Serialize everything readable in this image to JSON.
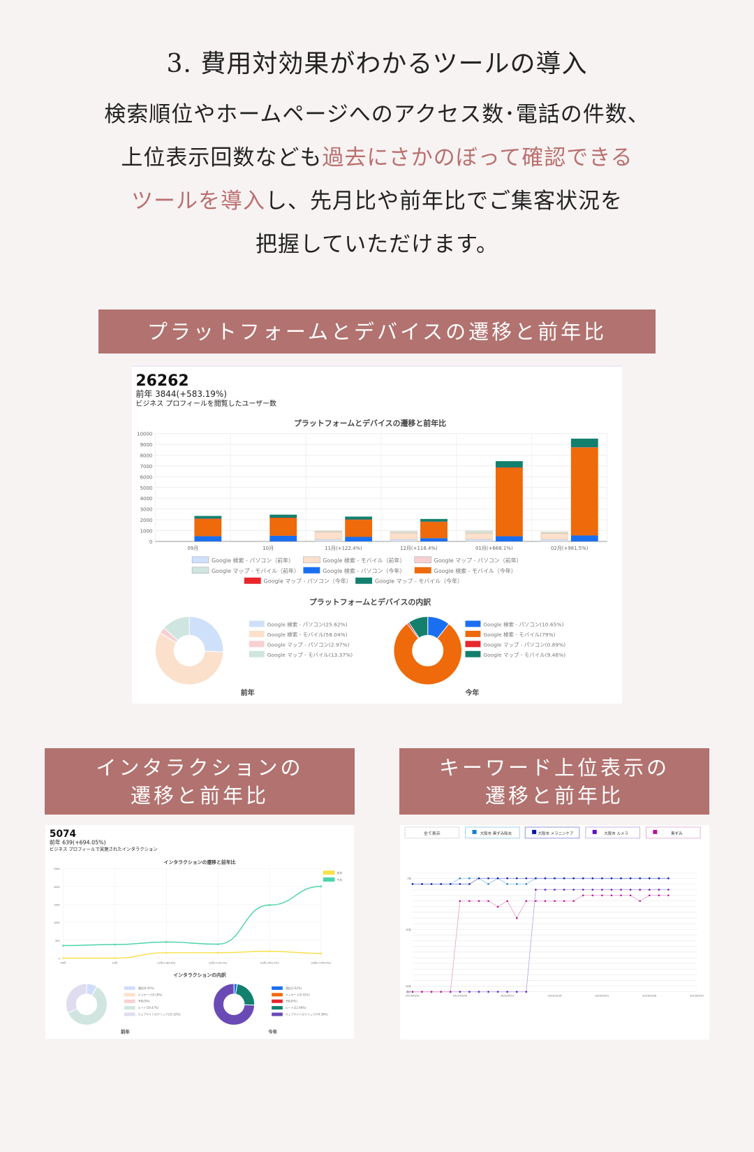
{
  "heading": "3. 費用対効果がわかるツールの導入",
  "intro": {
    "line1": "検索順位やホームページへのアクセス数･電話の件数、",
    "line2_a": "上位表示回数なども",
    "line2_b": "過去にさかのぼって確認できる",
    "line3_a": "ツールを導入",
    "line3_b": "し、先月比や前年比でご集客状況を",
    "line4": "把握していただけます。"
  },
  "banners": {
    "platform": "プラットフォームとデバイスの遷移と前年比",
    "interaction_1": "インタラクションの",
    "interaction_2": "遷移と前年比",
    "keyword_1": "キーワード上位表示の",
    "keyword_2": "遷移と前年比"
  },
  "colors": {
    "accent": "#b2726f",
    "highlight": "#b9706f",
    "background": "#f8f3f3"
  },
  "platform_card": {
    "total": "26262",
    "prev": "前年 3844(+583.19%)",
    "desc": "ビジネス プロフィールを閲覧したユーザー数",
    "chart_data": {
      "type": "bar",
      "stacked": true,
      "title": "プラットフォームとデバイスの遷移と前年比",
      "categories": [
        "09月",
        "10月",
        "11月(+122.4%)",
        "12月(+118.4%)",
        "01月(+668.1%)",
        "02月(+981.5%)"
      ],
      "ylim": [
        0,
        10000
      ],
      "yticks": [
        "0",
        "1000",
        "2000",
        "3000",
        "4000",
        "5000",
        "6000",
        "7000",
        "8000",
        "9000",
        "10000"
      ],
      "grid": true,
      "legend": "bottom",
      "series": [
        {
          "name": "Google 検索 - パソコン（前年）",
          "group": "prev",
          "color": "#cfe0fb",
          "values": [
            0,
            0,
            200,
            200,
            200,
            200
          ]
        },
        {
          "name": "Google 検索 - モバイル（前年）",
          "group": "prev",
          "color": "#fbe0cc",
          "values": [
            0,
            0,
            650,
            570,
            550,
            530
          ]
        },
        {
          "name": "Google マップ - パソコン（前年）",
          "group": "prev",
          "color": "#f8d0d2",
          "values": [
            0,
            0,
            30,
            30,
            30,
            30
          ]
        },
        {
          "name": "Google マップ - モバイル（前年）",
          "group": "prev",
          "color": "#cfe5df",
          "values": [
            0,
            0,
            100,
            130,
            200,
            120
          ]
        },
        {
          "name": "Google 検索 - パソコン（今年）",
          "group": "this",
          "color": "#1a6ff0",
          "values": [
            480,
            520,
            420,
            300,
            480,
            550
          ]
        },
        {
          "name": "Google 検索 - モバイル（今年）",
          "group": "this",
          "color": "#ee6a0a",
          "values": [
            1600,
            1650,
            1580,
            1500,
            6350,
            8150
          ]
        },
        {
          "name": "Google マップ - パソコン（今年）",
          "group": "this",
          "color": "#e8262b",
          "values": [
            30,
            30,
            30,
            30,
            30,
            30
          ]
        },
        {
          "name": "Google マップ - モバイル（今年）",
          "group": "this",
          "color": "#13806e",
          "values": [
            250,
            280,
            270,
            250,
            580,
            800
          ]
        }
      ]
    },
    "breakdown": {
      "title": "プラットフォームとデバイスの内訳",
      "chart_data": [
        {
          "type": "pie",
          "label": "前年",
          "slices": [
            {
              "name": "Google 検索 - パソコン(25.62%)",
              "value": 25.62,
              "color": "#cfe0fb"
            },
            {
              "name": "Google 検索 - モバイル(58.04%)",
              "value": 58.04,
              "color": "#fbe0cc"
            },
            {
              "name": "Google マップ - パソコン(2.97%)",
              "value": 2.97,
              "color": "#f8d0d2"
            },
            {
              "name": "Google マップ - モバイル(13.37%)",
              "value": 13.37,
              "color": "#cfe5df"
            }
          ]
        },
        {
          "type": "pie",
          "label": "今年",
          "slices": [
            {
              "name": "Google 検索 - パソコン(10.65%)",
              "value": 10.65,
              "color": "#1a6ff0"
            },
            {
              "name": "Google 検索 - モバイル(79%)",
              "value": 79,
              "color": "#ee6a0a"
            },
            {
              "name": "Google マップ - パソコン(0.89%)",
              "value": 0.89,
              "color": "#e8262b"
            },
            {
              "name": "Google マップ - モバイル(9.46%)",
              "value": 9.46,
              "color": "#13806e"
            }
          ]
        }
      ]
    }
  },
  "interaction_card": {
    "total": "5074",
    "prev": "前年 639(+694.05%)",
    "desc": "ビジネス プロフィールで実施されたインタラクション",
    "chart_data": {
      "type": "line",
      "title": "インタラクションの遷移と前年比",
      "categories": [
        "09月",
        "10月",
        "11月(+183.8%)",
        "12月(+154.2%)",
        "01月(+651.5%)",
        "02月(+1453.5%)"
      ],
      "ylim": [
        0,
        2500
      ],
      "yticks": [
        "0",
        "500",
        "1000",
        "1500",
        "2000",
        "2500"
      ],
      "legend": "top-right",
      "series": [
        {
          "name": "前年",
          "color": "#f8e04a",
          "values": [
            0,
            0,
            150,
            150,
            190,
            130
          ]
        },
        {
          "name": "今年",
          "color": "#4dd4ac",
          "values": [
            350,
            380,
            450,
            390,
            1480,
            2000
          ]
        }
      ]
    },
    "breakdown": {
      "title": "インタラクションの内訳",
      "chart_data": [
        {
          "type": "pie",
          "label": "前年",
          "slices": [
            {
              "name": "通話(8.45%)",
              "value": 8.45,
              "color": "#d0dcfa"
            },
            {
              "name": "メッセージ(0.16%)",
              "value": 0.16,
              "color": "#fbe0cc"
            },
            {
              "name": "予約(0%)",
              "value": 0,
              "color": "#f8d0d2"
            },
            {
              "name": "ルート(59.47%)",
              "value": 59.47,
              "color": "#d0e5df"
            },
            {
              "name": "ウェブサイトのクリック(31.92%)",
              "value": 31.92,
              "color": "#e0dcf0"
            }
          ]
        },
        {
          "type": "pie",
          "label": "今年",
          "slices": [
            {
              "name": "通話(2.62%)",
              "value": 2.62,
              "color": "#1a6ff0"
            },
            {
              "name": "メッセージ(0.02%)",
              "value": 0.02,
              "color": "#ee6a0a"
            },
            {
              "name": "予約(0%)",
              "value": 0,
              "color": "#e8262b"
            },
            {
              "name": "ルート(22.98%)",
              "value": 22.98,
              "color": "#13806e"
            },
            {
              "name": "ウェブサイトのクリック(74.38%)",
              "value": 74.38,
              "color": "#6a4bb5"
            }
          ]
        }
      ]
    }
  },
  "keyword_card": {
    "show_all": "全て表示",
    "chart_data": {
      "type": "line",
      "xticks": [
        "2023/03/01",
        "2023/03/06",
        "2023/03/11",
        "2023/03/16",
        "2023/03/21",
        "2023/03/26",
        "2023/03/31"
      ],
      "xlim": [
        "2023/03/01",
        "2023/03/31"
      ],
      "yticks": [
        {
          "rank": 1,
          "label": "1位"
        },
        {
          "rank": 10,
          "label": "10位"
        },
        {
          "rank": 20,
          "label": "20位"
        },
        {
          "rank": 21,
          "label": "圏外"
        }
      ],
      "y_inverted": true,
      "grid": true,
      "series": [
        {
          "name": "大阪市 黒ずみ除去",
          "color": "#1a7fc8",
          "line": "#8cc4e0",
          "values": [
            2,
            2,
            2,
            2,
            2,
            1,
            1,
            1,
            2,
            1,
            2,
            2,
            2,
            1,
            1,
            1,
            1,
            1,
            1,
            1,
            1,
            1,
            1,
            1,
            1,
            1,
            1,
            1
          ]
        },
        {
          "name": "大阪市 メラニンケア",
          "color": "#0a14b0",
          "line": "#7080d0",
          "values": [
            2,
            2,
            2,
            2,
            2,
            2,
            2,
            1,
            1,
            1,
            1,
            1,
            1,
            1,
            1,
            1,
            1,
            1,
            1,
            1,
            1,
            1,
            1,
            1,
            1,
            1,
            1,
            1
          ]
        },
        {
          "name": "大阪市 ルメラ",
          "color": "#5a10c8",
          "line": "#b8a0e0",
          "values": [
            21,
            21,
            21,
            21,
            21,
            21,
            21,
            21,
            21,
            21,
            21,
            21,
            21,
            3,
            3,
            3,
            3,
            3,
            3,
            3,
            3,
            3,
            3,
            3,
            3,
            3,
            3,
            3
          ]
        },
        {
          "name": "黒ずみ",
          "color": "#c0109a",
          "line": "#e0a0cc",
          "values": [
            21,
            21,
            21,
            21,
            21,
            5,
            5,
            5,
            5,
            6,
            5,
            8,
            5,
            5,
            5,
            5,
            5,
            5,
            4,
            4,
            4,
            4,
            4,
            4,
            5,
            4,
            4,
            4
          ]
        }
      ]
    }
  }
}
